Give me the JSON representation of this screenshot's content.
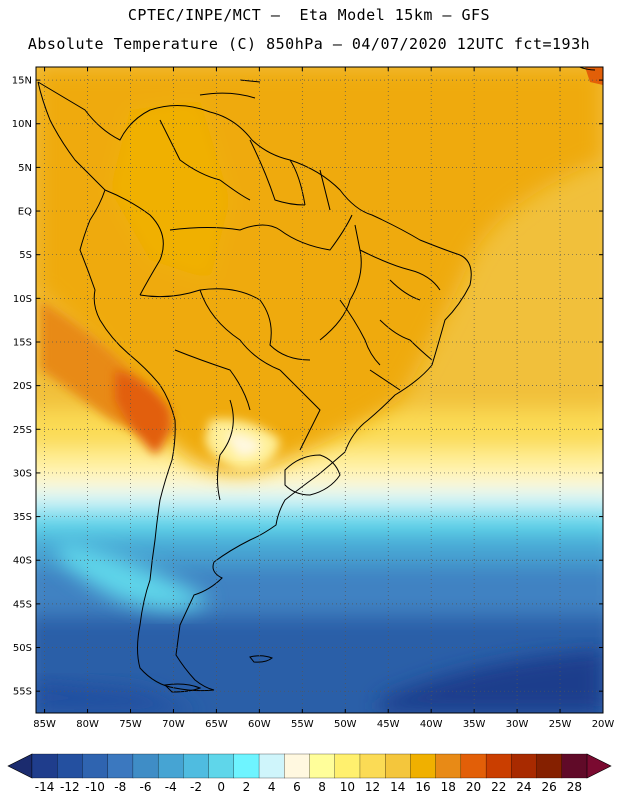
{
  "header": {
    "line1": "CPTEC/INPE/MCT –  Eta Model 15km – GFS",
    "line2": "Absolute Temperature (C) 850hPa – 04/07/2020 12UTC fct=193h"
  },
  "map": {
    "lat_labels": [
      "15N",
      "10N",
      "5N",
      "EQ",
      "5S",
      "10S",
      "15S",
      "20S",
      "25S",
      "30S",
      "35S",
      "40S",
      "45S",
      "50S",
      "55S"
    ],
    "lon_labels": [
      "85W",
      "80W",
      "75W",
      "70W",
      "65W",
      "60W",
      "55W",
      "50W",
      "45W",
      "40W",
      "35W",
      "30W",
      "25W",
      "20W"
    ],
    "lat_values": [
      15,
      10,
      5,
      0,
      -5,
      -10,
      -15,
      -20,
      -25,
      -30,
      -35,
      -40,
      -45,
      -50,
      -55
    ],
    "lon_values": [
      -85,
      -80,
      -75,
      -70,
      -65,
      -60,
      -55,
      -50,
      -45,
      -40,
      -35,
      -30,
      -25,
      -20
    ],
    "lat_range": [
      -57.5,
      16.5
    ],
    "lon_range": [
      -86,
      -20
    ],
    "grid": true
  },
  "colorbar": {
    "labels": [
      "-14",
      "-12",
      "-10",
      "-8",
      "-6",
      "-4",
      "-2",
      "0",
      "2",
      "4",
      "6",
      "8",
      "10",
      "12",
      "14",
      "16",
      "18",
      "20",
      "22",
      "24",
      "26",
      "28"
    ],
    "colors": [
      "#1f3d8c",
      "#2450a0",
      "#2f64b0",
      "#3b78bf",
      "#3f8dc6",
      "#46a4d3",
      "#4fbce0",
      "#5fd6ea",
      "#6ef4ff",
      "#cff5fb",
      "#fff8e0",
      "#fffe9a",
      "#fff06e",
      "#fbdb55",
      "#f4c63c",
      "#f0b000",
      "#e88a16",
      "#e25f08",
      "#ca3e00",
      "#a82a00",
      "#852000",
      "#600a28"
    ],
    "low_color": "#1b2b6e",
    "high_color": "#7a0a30"
  }
}
